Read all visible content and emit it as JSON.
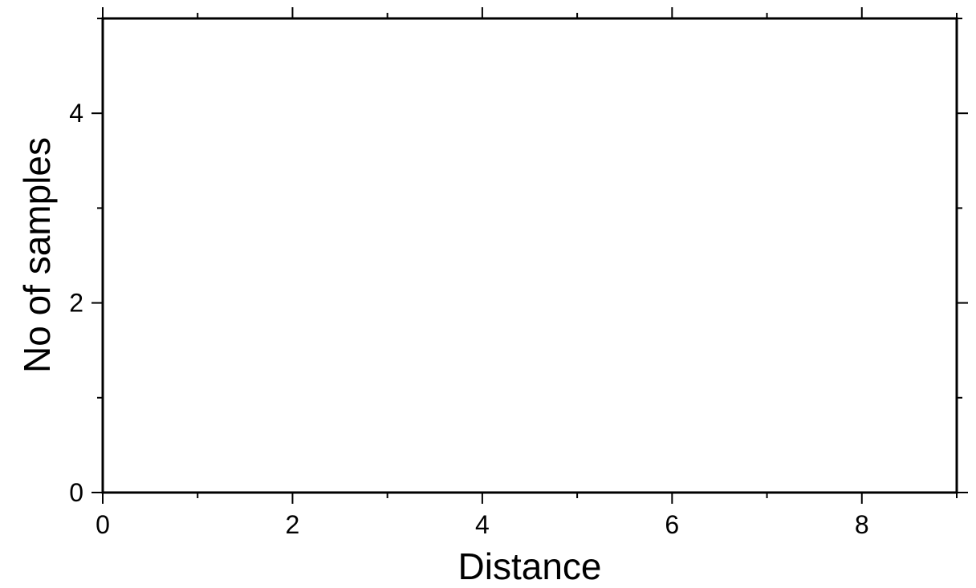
{
  "chart_data": {
    "type": "bar",
    "title": "",
    "xlabel": "Distance",
    "ylabel": "No of samples",
    "xlim": [
      0,
      9
    ],
    "ylim": [
      0,
      5
    ],
    "x_major_ticks": [
      0,
      2,
      4,
      6,
      8
    ],
    "x_minor_ticks": [
      1,
      3,
      5,
      7,
      9
    ],
    "y_major_ticks": [
      0,
      2,
      4
    ],
    "y_minor_ticks": [
      1,
      3,
      5
    ],
    "x_tick_labels": [
      "0",
      "2",
      "4",
      "6",
      "8"
    ],
    "y_tick_labels": [
      "0",
      "2",
      "4"
    ],
    "grid": false,
    "series": []
  }
}
